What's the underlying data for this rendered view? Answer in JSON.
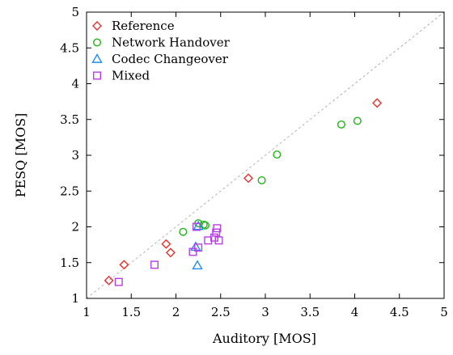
{
  "chart_data": {
    "type": "scatter",
    "title": "",
    "xlabel": "Auditory [MOS]",
    "ylabel": "PESQ [MOS]",
    "xlim": [
      1,
      5
    ],
    "ylim": [
      1,
      5
    ],
    "xticks": [
      "1",
      "1.5",
      "2",
      "2.5",
      "3",
      "3.5",
      "4",
      "4.5",
      "5"
    ],
    "yticks": [
      "1",
      "1.5",
      "2",
      "2.5",
      "3",
      "3.5",
      "4",
      "4.5",
      "5"
    ],
    "grid": false,
    "legend_position": "top-left",
    "diagonal_reference_line": true,
    "series": [
      {
        "name": "Reference",
        "marker": "diamond",
        "color": "#e8302c",
        "points": [
          [
            1.25,
            1.25
          ],
          [
            1.42,
            1.47
          ],
          [
            1.89,
            1.76
          ],
          [
            1.94,
            1.64
          ],
          [
            2.81,
            2.68
          ],
          [
            4.25,
            3.73
          ]
        ]
      },
      {
        "name": "Network Handover",
        "marker": "circle",
        "color": "#1fb514",
        "points": [
          [
            2.08,
            1.93
          ],
          [
            2.25,
            2.05
          ],
          [
            2.31,
            2.03
          ],
          [
            2.33,
            2.02
          ],
          [
            2.96,
            2.65
          ],
          [
            3.13,
            3.01
          ],
          [
            3.85,
            3.43
          ],
          [
            4.03,
            3.48
          ]
        ]
      },
      {
        "name": "Codec Changeover",
        "marker": "triangle",
        "color": "#1f8ef0",
        "points": [
          [
            2.24,
            1.46
          ],
          [
            2.22,
            1.72
          ],
          [
            2.25,
            2.01
          ]
        ]
      },
      {
        "name": "Mixed",
        "marker": "square",
        "color": "#b73fe3",
        "points": [
          [
            1.36,
            1.23
          ],
          [
            1.76,
            1.47
          ],
          [
            2.19,
            1.65
          ],
          [
            2.23,
            2.0
          ],
          [
            2.25,
            1.71
          ],
          [
            2.36,
            1.81
          ],
          [
            2.43,
            1.85
          ],
          [
            2.45,
            1.92
          ],
          [
            2.46,
            1.98
          ],
          [
            2.48,
            1.81
          ]
        ]
      }
    ]
  }
}
